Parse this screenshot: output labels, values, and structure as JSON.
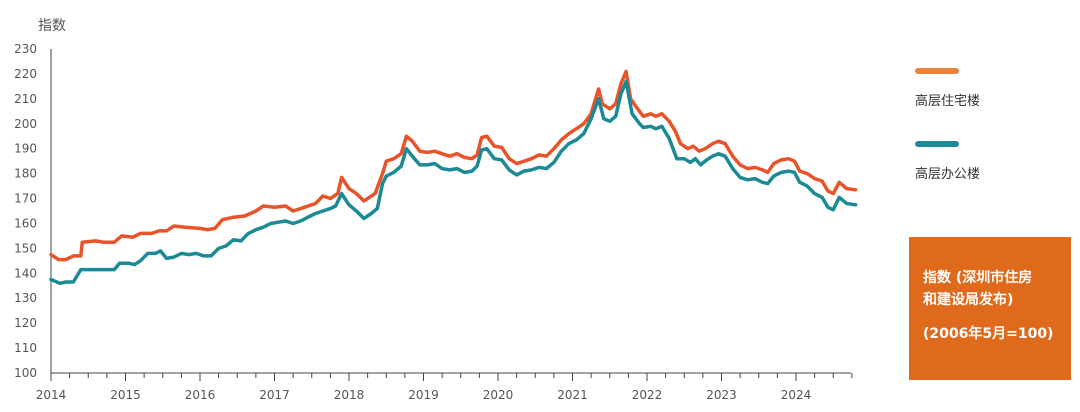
{
  "chart_data": {
    "type": "line",
    "ylabel": "指数",
    "ylim": [
      100,
      230
    ],
    "yticks": [
      100,
      110,
      120,
      130,
      140,
      150,
      160,
      170,
      180,
      190,
      200,
      210,
      220,
      230
    ],
    "xticks": [
      "2014",
      "2015",
      "2016",
      "2017",
      "2018",
      "2019",
      "2020",
      "2021",
      "2022",
      "2023",
      "2024"
    ],
    "xlim": [
      2014.0,
      2024.85
    ],
    "grid": false,
    "legend_position": "right",
    "series": [
      {
        "name": "高层住宅楼",
        "color": "#e8532a",
        "points": [
          [
            2014.0,
            147.5
          ],
          [
            2014.1,
            145.5
          ],
          [
            2014.2,
            145.5
          ],
          [
            2014.3,
            147
          ],
          [
            2014.4,
            147
          ],
          [
            2014.42,
            152.5
          ],
          [
            2014.6,
            153
          ],
          [
            2014.7,
            152.5
          ],
          [
            2014.85,
            152.5
          ],
          [
            2014.95,
            155
          ],
          [
            2015.1,
            154.5
          ],
          [
            2015.2,
            156
          ],
          [
            2015.35,
            156
          ],
          [
            2015.45,
            157
          ],
          [
            2015.55,
            157
          ],
          [
            2015.65,
            159
          ],
          [
            2015.8,
            158.5
          ],
          [
            2016.0,
            158
          ],
          [
            2016.1,
            157.5
          ],
          [
            2016.2,
            158
          ],
          [
            2016.3,
            161.5
          ],
          [
            2016.45,
            162.5
          ],
          [
            2016.6,
            163
          ],
          [
            2016.75,
            165
          ],
          [
            2016.85,
            167
          ],
          [
            2017.0,
            166.5
          ],
          [
            2017.15,
            167
          ],
          [
            2017.25,
            165
          ],
          [
            2017.4,
            166.5
          ],
          [
            2017.55,
            168
          ],
          [
            2017.65,
            171
          ],
          [
            2017.75,
            170
          ],
          [
            2017.85,
            172
          ],
          [
            2017.9,
            178.5
          ],
          [
            2018.0,
            174
          ],
          [
            2018.1,
            172
          ],
          [
            2018.2,
            169
          ],
          [
            2018.35,
            172
          ],
          [
            2018.45,
            180
          ],
          [
            2018.5,
            185
          ],
          [
            2018.6,
            186
          ],
          [
            2018.7,
            188
          ],
          [
            2018.77,
            195
          ],
          [
            2018.85,
            193
          ],
          [
            2018.95,
            189
          ],
          [
            2019.05,
            188.5
          ],
          [
            2019.15,
            189
          ],
          [
            2019.25,
            188
          ],
          [
            2019.35,
            187
          ],
          [
            2019.45,
            188
          ],
          [
            2019.55,
            186.5
          ],
          [
            2019.65,
            186
          ],
          [
            2019.72,
            187.5
          ],
          [
            2019.78,
            194.5
          ],
          [
            2019.85,
            195
          ],
          [
            2019.95,
            191
          ],
          [
            2020.05,
            190.5
          ],
          [
            2020.15,
            186
          ],
          [
            2020.25,
            184
          ],
          [
            2020.35,
            185
          ],
          [
            2020.45,
            186
          ],
          [
            2020.55,
            187.5
          ],
          [
            2020.65,
            187
          ],
          [
            2020.75,
            190
          ],
          [
            2020.85,
            193.5
          ],
          [
            2020.95,
            196
          ],
          [
            2021.05,
            198
          ],
          [
            2021.15,
            200
          ],
          [
            2021.25,
            204
          ],
          [
            2021.3,
            209
          ],
          [
            2021.35,
            214
          ],
          [
            2021.4,
            208
          ],
          [
            2021.5,
            206
          ],
          [
            2021.58,
            208
          ],
          [
            2021.65,
            216
          ],
          [
            2021.72,
            221
          ],
          [
            2021.78,
            210
          ],
          [
            2021.85,
            207
          ],
          [
            2021.95,
            203
          ],
          [
            2022.05,
            204
          ],
          [
            2022.12,
            203
          ],
          [
            2022.2,
            204
          ],
          [
            2022.3,
            201
          ],
          [
            2022.38,
            197
          ],
          [
            2022.45,
            192
          ],
          [
            2022.55,
            190
          ],
          [
            2022.62,
            191
          ],
          [
            2022.7,
            189
          ],
          [
            2022.78,
            190
          ],
          [
            2022.88,
            192
          ],
          [
            2022.96,
            193
          ],
          [
            2023.05,
            192
          ],
          [
            2023.15,
            187
          ],
          [
            2023.25,
            183.5
          ],
          [
            2023.35,
            182
          ],
          [
            2023.45,
            182.5
          ],
          [
            2023.55,
            181.5
          ],
          [
            2023.62,
            180.5
          ],
          [
            2023.7,
            184
          ],
          [
            2023.8,
            185.5
          ],
          [
            2023.9,
            186
          ],
          [
            2023.98,
            185
          ],
          [
            2024.05,
            181
          ],
          [
            2024.15,
            180
          ],
          [
            2024.25,
            178
          ],
          [
            2024.35,
            177
          ],
          [
            2024.43,
            173
          ],
          [
            2024.5,
            172
          ],
          [
            2024.58,
            176.5
          ],
          [
            2024.68,
            174
          ],
          [
            2024.8,
            173.5
          ]
        ]
      },
      {
        "name": "高层办公楼",
        "color": "#1b8a96",
        "points": [
          [
            2014.0,
            137.5
          ],
          [
            2014.12,
            136
          ],
          [
            2014.2,
            136.5
          ],
          [
            2014.3,
            136.5
          ],
          [
            2014.4,
            141.5
          ],
          [
            2014.55,
            141.5
          ],
          [
            2014.7,
            141.5
          ],
          [
            2014.85,
            141.5
          ],
          [
            2014.92,
            144
          ],
          [
            2015.05,
            144
          ],
          [
            2015.12,
            143.5
          ],
          [
            2015.2,
            145
          ],
          [
            2015.3,
            148
          ],
          [
            2015.4,
            148
          ],
          [
            2015.47,
            149
          ],
          [
            2015.55,
            146
          ],
          [
            2015.65,
            146.5
          ],
          [
            2015.75,
            148
          ],
          [
            2015.85,
            147.5
          ],
          [
            2015.95,
            148
          ],
          [
            2016.05,
            147
          ],
          [
            2016.15,
            147
          ],
          [
            2016.25,
            150
          ],
          [
            2016.35,
            151
          ],
          [
            2016.45,
            153.5
          ],
          [
            2016.55,
            153
          ],
          [
            2016.65,
            156
          ],
          [
            2016.75,
            157.5
          ],
          [
            2016.85,
            158.5
          ],
          [
            2016.95,
            160
          ],
          [
            2017.05,
            160.5
          ],
          [
            2017.15,
            161
          ],
          [
            2017.25,
            160
          ],
          [
            2017.35,
            161
          ],
          [
            2017.45,
            162.5
          ],
          [
            2017.55,
            164
          ],
          [
            2017.65,
            165
          ],
          [
            2017.75,
            166
          ],
          [
            2017.82,
            167
          ],
          [
            2017.9,
            172
          ],
          [
            2018.0,
            167.5
          ],
          [
            2018.1,
            165
          ],
          [
            2018.2,
            162
          ],
          [
            2018.3,
            164
          ],
          [
            2018.38,
            166
          ],
          [
            2018.45,
            176
          ],
          [
            2018.5,
            179
          ],
          [
            2018.6,
            180.5
          ],
          [
            2018.7,
            183
          ],
          [
            2018.77,
            190
          ],
          [
            2018.85,
            187
          ],
          [
            2018.95,
            183.5
          ],
          [
            2019.05,
            183.5
          ],
          [
            2019.15,
            184
          ],
          [
            2019.25,
            182
          ],
          [
            2019.35,
            181.5
          ],
          [
            2019.45,
            182
          ],
          [
            2019.55,
            180.5
          ],
          [
            2019.65,
            181
          ],
          [
            2019.72,
            183
          ],
          [
            2019.78,
            189.5
          ],
          [
            2019.85,
            190
          ],
          [
            2019.95,
            186
          ],
          [
            2020.05,
            185.5
          ],
          [
            2020.15,
            181.5
          ],
          [
            2020.25,
            179.5
          ],
          [
            2020.35,
            181
          ],
          [
            2020.45,
            181.5
          ],
          [
            2020.55,
            182.5
          ],
          [
            2020.65,
            182
          ],
          [
            2020.75,
            184.5
          ],
          [
            2020.85,
            189
          ],
          [
            2020.95,
            192
          ],
          [
            2021.05,
            193.5
          ],
          [
            2021.15,
            196
          ],
          [
            2021.25,
            202
          ],
          [
            2021.35,
            210
          ],
          [
            2021.42,
            202
          ],
          [
            2021.5,
            201
          ],
          [
            2021.58,
            203
          ],
          [
            2021.65,
            212
          ],
          [
            2021.72,
            217
          ],
          [
            2021.8,
            204
          ],
          [
            2021.9,
            200
          ],
          [
            2021.95,
            198.5
          ],
          [
            2022.05,
            199
          ],
          [
            2022.12,
            198
          ],
          [
            2022.2,
            199
          ],
          [
            2022.3,
            194
          ],
          [
            2022.4,
            186
          ],
          [
            2022.5,
            186
          ],
          [
            2022.58,
            184.5
          ],
          [
            2022.65,
            186
          ],
          [
            2022.72,
            183.5
          ],
          [
            2022.8,
            185.5
          ],
          [
            2022.88,
            187
          ],
          [
            2022.96,
            188
          ],
          [
            2023.05,
            187
          ],
          [
            2023.15,
            182
          ],
          [
            2023.25,
            178.5
          ],
          [
            2023.35,
            177.5
          ],
          [
            2023.45,
            178
          ],
          [
            2023.55,
            176.5
          ],
          [
            2023.62,
            176
          ],
          [
            2023.7,
            179
          ],
          [
            2023.8,
            180.5
          ],
          [
            2023.9,
            181
          ],
          [
            2023.98,
            180.5
          ],
          [
            2024.05,
            176.5
          ],
          [
            2024.15,
            175
          ],
          [
            2024.25,
            172
          ],
          [
            2024.35,
            170.5
          ],
          [
            2024.43,
            166.5
          ],
          [
            2024.5,
            165.5
          ],
          [
            2024.58,
            170.5
          ],
          [
            2024.68,
            168
          ],
          [
            2024.8,
            167.5
          ]
        ]
      }
    ]
  },
  "info": {
    "line1": "指数 (深圳市住房",
    "line2": "和建设局发布)",
    "note": "(2006年5月=100)"
  }
}
